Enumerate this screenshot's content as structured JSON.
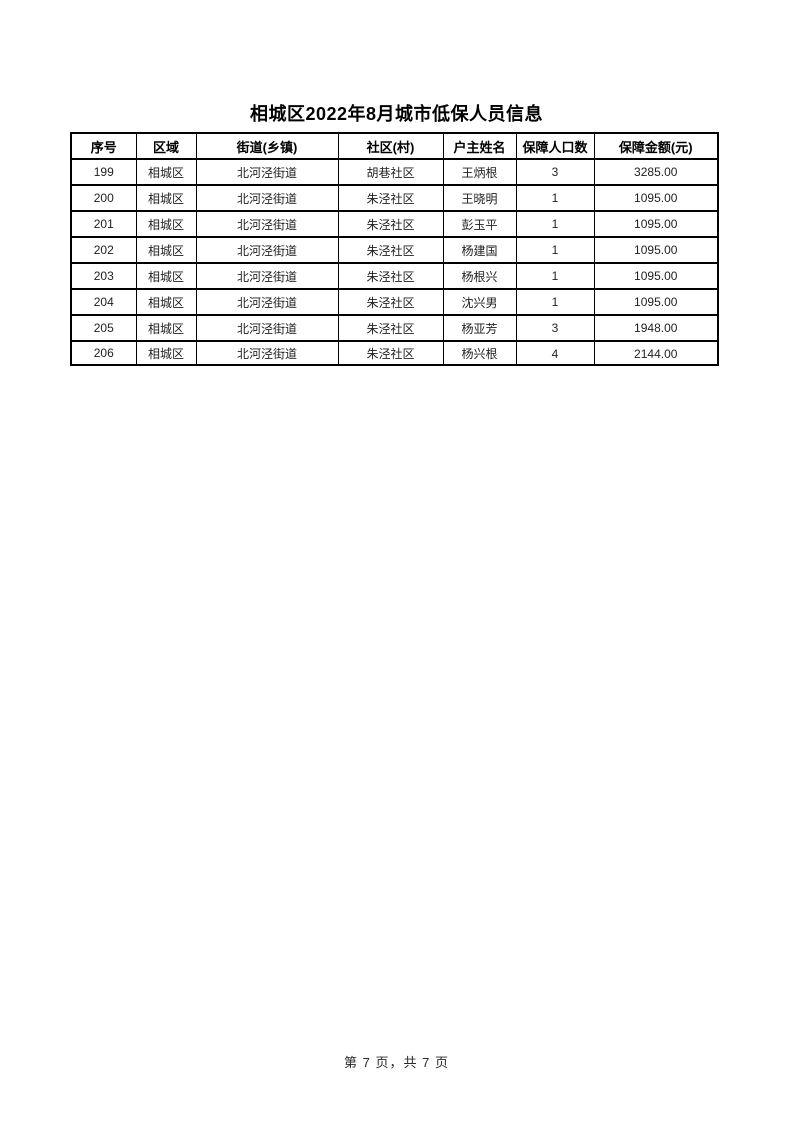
{
  "page": {
    "title": "相城区2022年8月城市低保人员信息",
    "footer": "第 7 页，共 7 页"
  },
  "table": {
    "headers": [
      "序号",
      "区域",
      "街道(乡镇)",
      "社区(村)",
      "户主姓名",
      "保障人口数",
      "保障金额(元)"
    ],
    "rows": [
      [
        "199",
        "相城区",
        "北河泾街道",
        "胡巷社区",
        "王炳根",
        "3",
        "3285.00"
      ],
      [
        "200",
        "相城区",
        "北河泾街道",
        "朱泾社区",
        "王晓明",
        "1",
        "1095.00"
      ],
      [
        "201",
        "相城区",
        "北河泾街道",
        "朱泾社区",
        "彭玉平",
        "1",
        "1095.00"
      ],
      [
        "202",
        "相城区",
        "北河泾街道",
        "朱泾社区",
        "杨建国",
        "1",
        "1095.00"
      ],
      [
        "203",
        "相城区",
        "北河泾街道",
        "朱泾社区",
        "杨根兴",
        "1",
        "1095.00"
      ],
      [
        "204",
        "相城区",
        "北河泾街道",
        "朱泾社区",
        "沈兴男",
        "1",
        "1095.00"
      ],
      [
        "205",
        "相城区",
        "北河泾街道",
        "朱泾社区",
        "杨亚芳",
        "3",
        "1948.00"
      ],
      [
        "206",
        "相城区",
        "北河泾街道",
        "朱泾社区",
        "杨兴根",
        "4",
        "2144.00"
      ]
    ]
  }
}
